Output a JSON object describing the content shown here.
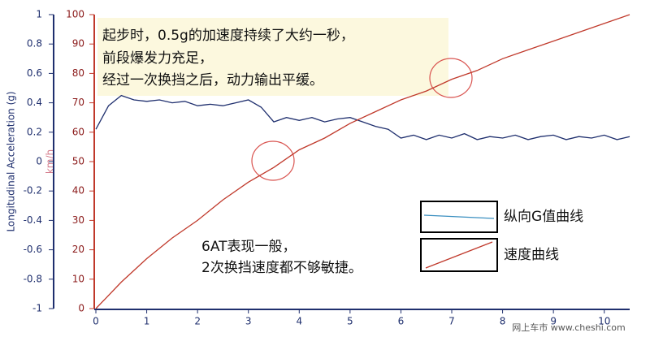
{
  "chart_data": {
    "type": "line",
    "y_label": "Longitudinal Acceleration (g)",
    "y2_label": "km/h",
    "xlim": [
      0,
      10.5
    ],
    "xticks": [
      0,
      1,
      2,
      3,
      4,
      5,
      6,
      7,
      8,
      9,
      10
    ],
    "ylim": [
      -1,
      1
    ],
    "yticks": [
      -1,
      -0.8,
      -0.6,
      -0.4,
      -0.2,
      0,
      0.2,
      0.4,
      0.6,
      0.8,
      1
    ],
    "y2lim": [
      0,
      100
    ],
    "y2ticks": [
      0,
      10,
      20,
      30,
      40,
      50,
      60,
      70,
      80,
      90,
      100
    ],
    "series": [
      {
        "name": "纵向G值曲线",
        "color": "#1f2f6e",
        "axis": "y",
        "x": [
          0,
          0.25,
          0.5,
          0.75,
          1,
          1.25,
          1.5,
          1.75,
          2,
          2.25,
          2.5,
          2.75,
          3,
          3.25,
          3.5,
          3.75,
          4,
          4.25,
          4.5,
          4.75,
          5,
          5.25,
          5.5,
          5.75,
          6,
          6.25,
          6.5,
          6.75,
          7,
          7.25,
          7.5,
          7.75,
          8,
          8.25,
          8.5,
          8.75,
          9,
          9.25,
          9.5,
          9.75,
          10,
          10.25,
          10.5
        ],
        "values": [
          0.22,
          0.38,
          0.45,
          0.42,
          0.41,
          0.42,
          0.4,
          0.41,
          0.38,
          0.39,
          0.38,
          0.4,
          0.42,
          0.37,
          0.27,
          0.3,
          0.28,
          0.3,
          0.27,
          0.29,
          0.3,
          0.27,
          0.24,
          0.22,
          0.16,
          0.18,
          0.15,
          0.18,
          0.16,
          0.19,
          0.15,
          0.17,
          0.16,
          0.18,
          0.15,
          0.17,
          0.18,
          0.15,
          0.17,
          0.16,
          0.18,
          0.15,
          0.17
        ]
      },
      {
        "name": "速度曲线",
        "color": "#c0392b",
        "axis": "y2",
        "x": [
          0,
          0.5,
          1,
          1.5,
          2,
          2.5,
          3,
          3.5,
          4,
          4.5,
          5,
          5.5,
          6,
          6.5,
          7,
          7.5,
          8,
          8.5,
          9,
          9.5,
          10,
          10.5
        ],
        "values": [
          0,
          9,
          17,
          24,
          30,
          37,
          43,
          48,
          54,
          58,
          63,
          67,
          71,
          74,
          78,
          81,
          85,
          88,
          91,
          94,
          97,
          100
        ]
      }
    ],
    "annotations": [
      "起步时，0.5g的加速度持续了大约一秒，",
      "前段爆发力充足，",
      "经过一次换挡之后，动力输出平缓。",
      "6AT表现一般，",
      "2次换挡速度都不够敏捷。"
    ],
    "watermark": "网上车市 www.cheshi.com"
  }
}
